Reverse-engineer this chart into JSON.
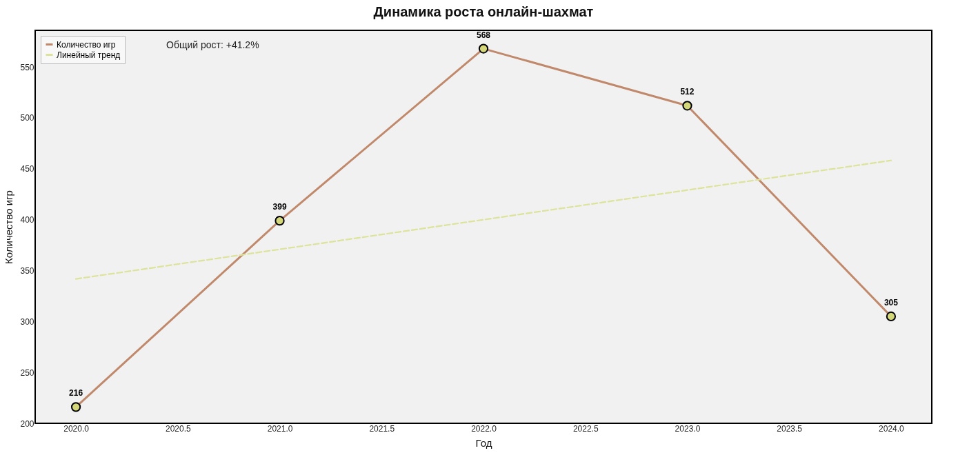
{
  "chart_data": {
    "type": "line",
    "title": "Динамика роста онлайн-шахмат",
    "xlabel": "Год",
    "ylabel": "Количество игр",
    "x": [
      2020,
      2021,
      2022,
      2023,
      2024
    ],
    "series": [
      {
        "name": "Количество игр",
        "color": "#c0896b",
        "values": [
          216,
          399,
          568,
          512,
          305
        ],
        "marker": "circle",
        "line_style": "solid",
        "data_labels": true
      },
      {
        "name": "Линейный тренд",
        "type": "line",
        "color": "#dde39a",
        "x": [
          2020,
          2024
        ],
        "values": [
          341.8,
          458.2
        ],
        "marker": "none",
        "line_style": "dashed"
      }
    ],
    "xlim": [
      2019.8,
      2024.2
    ],
    "xticks": [
      {
        "value": 2020,
        "label": "2020.0"
      },
      {
        "value": 2020.5,
        "label": "2020.5"
      },
      {
        "value": 2021,
        "label": "2021.0"
      },
      {
        "value": 2021.5,
        "label": "2021.5"
      },
      {
        "value": 2022,
        "label": "2022.0"
      },
      {
        "value": 2022.5,
        "label": "2022.5"
      },
      {
        "value": 2023,
        "label": "2023.0"
      },
      {
        "value": 2023.5,
        "label": "2023.5"
      },
      {
        "value": 2024,
        "label": "2024.0"
      }
    ],
    "ylim": [
      200,
      586
    ],
    "yticks": [
      200,
      250,
      300,
      350,
      400,
      450,
      500,
      550
    ],
    "grid": false,
    "legend": "top left",
    "annotations": [
      "Общий рост: +41.2%"
    ]
  }
}
